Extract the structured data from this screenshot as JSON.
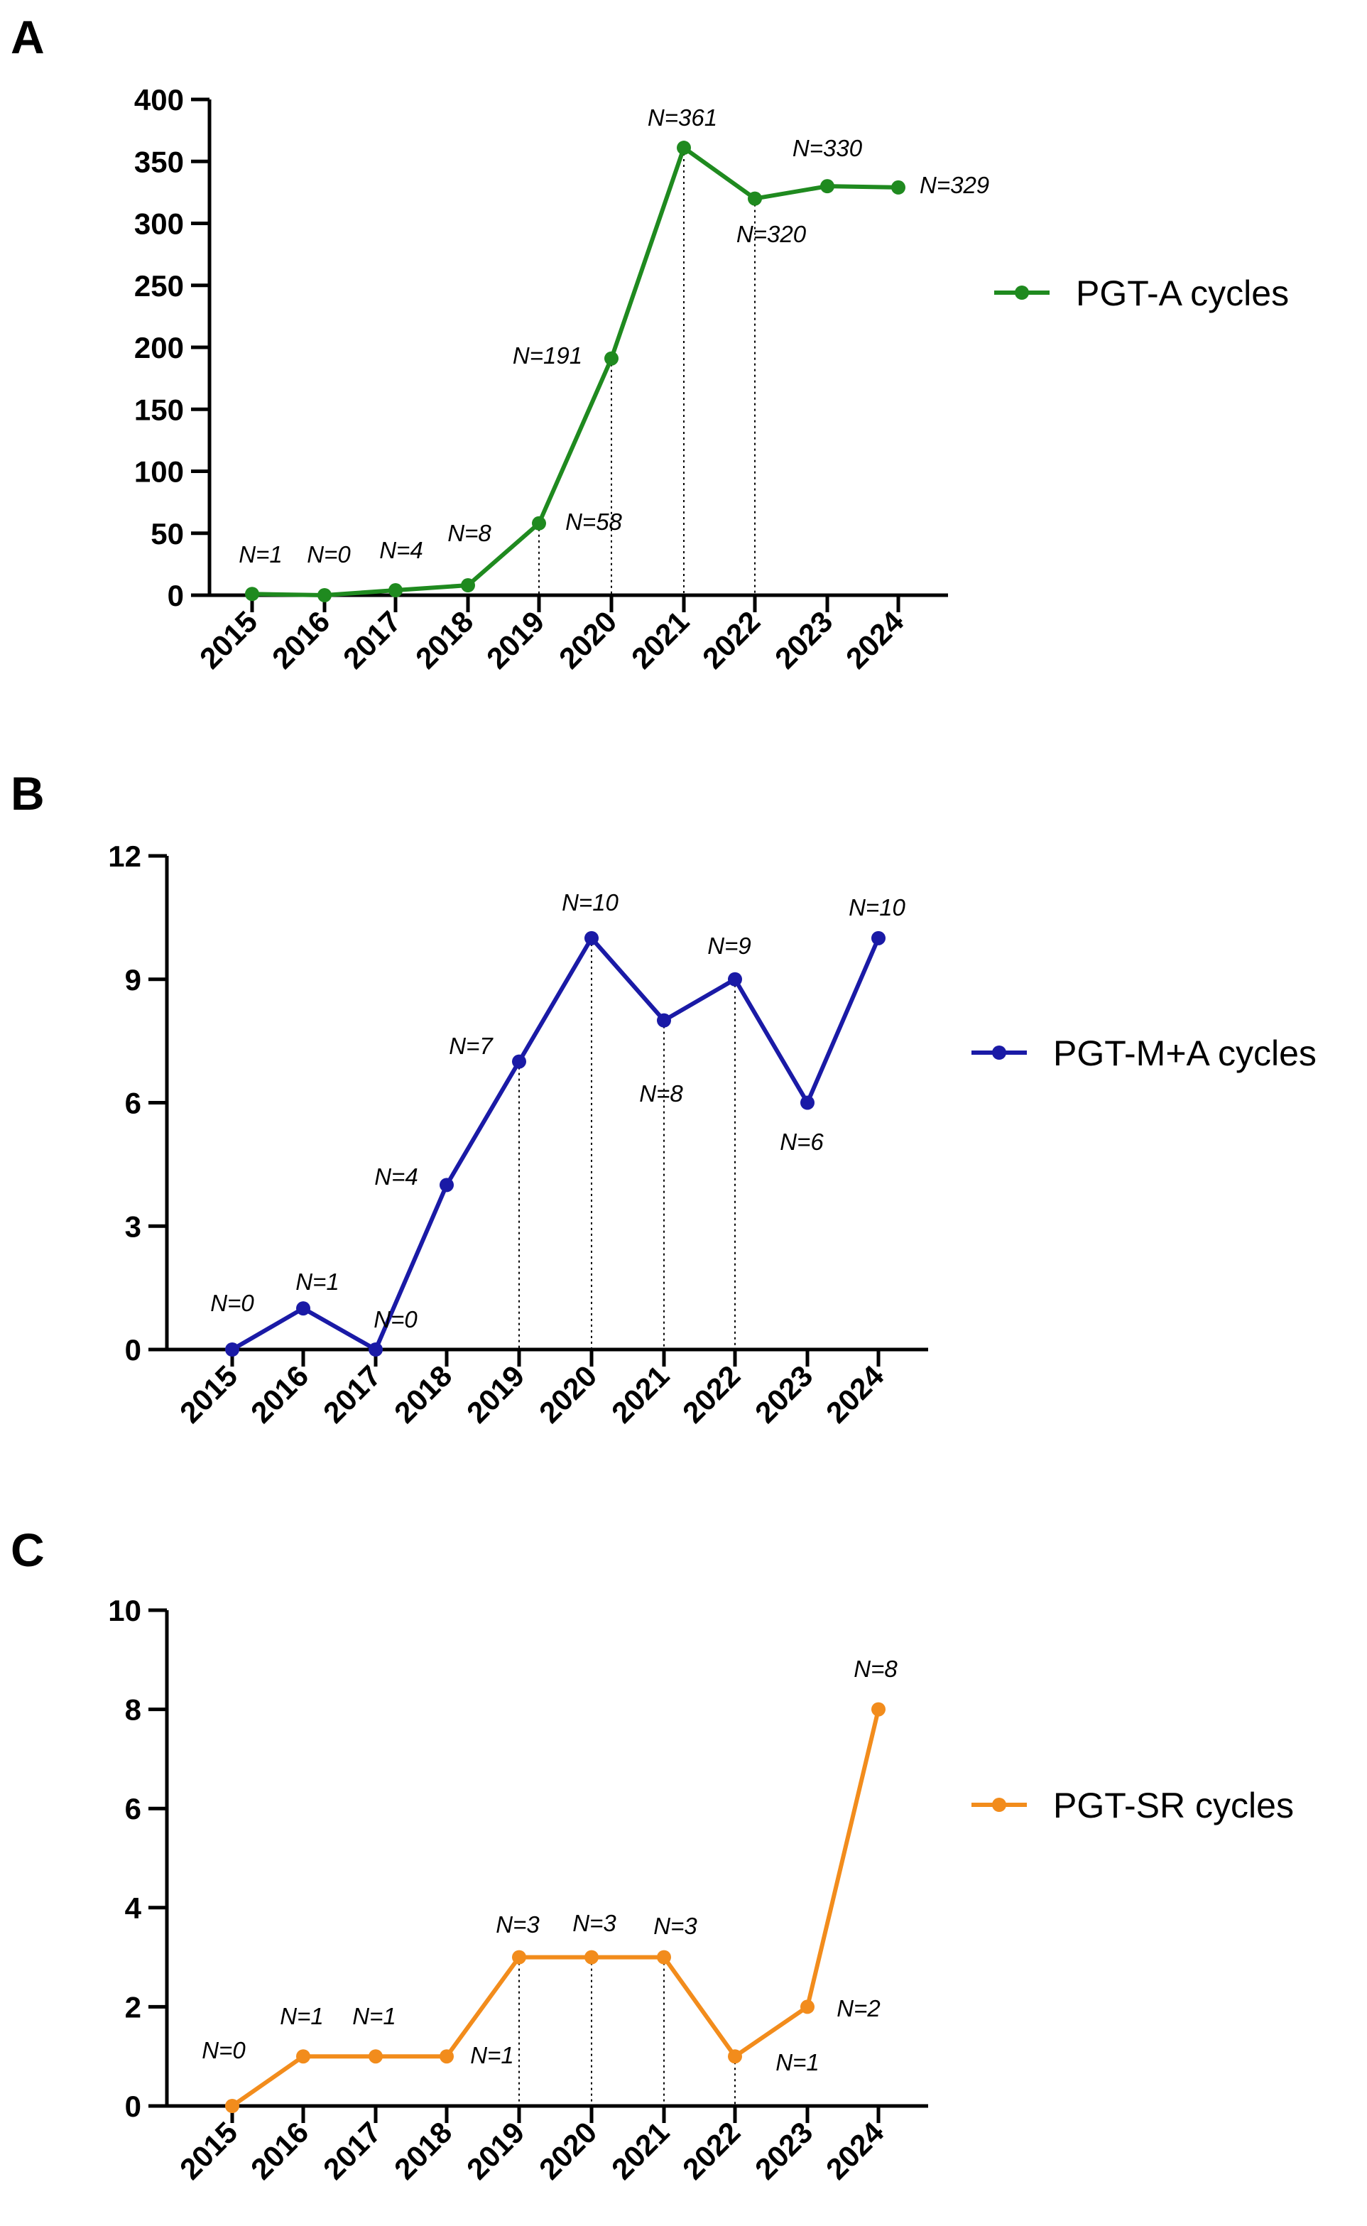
{
  "chart_data": [
    {
      "panel": "A",
      "type": "line",
      "color": "#1f8a1f",
      "categories": [
        "2015",
        "2016",
        "2017",
        "2018",
        "2019",
        "2020",
        "2021",
        "2022",
        "2023",
        "2024"
      ],
      "series": [
        {
          "name": "PGT-A cycles",
          "values": [
            1,
            0,
            4,
            8,
            58,
            191,
            361,
            320,
            330,
            329
          ]
        }
      ],
      "data_labels": [
        "N=1",
        "N=0",
        "N=4",
        "N=8",
        "N=58",
        "N=191",
        "N=361",
        "N=320",
        "N=330",
        "N=329"
      ],
      "ylim": [
        0,
        400
      ],
      "yticks": [
        "0",
        "50",
        "100",
        "150",
        "200",
        "250",
        "300",
        "350",
        "400"
      ],
      "guides": [
        "2019",
        "2020",
        "2021",
        "2022"
      ],
      "legend": "right"
    },
    {
      "panel": "B",
      "type": "line",
      "color": "#1a1aa6",
      "categories": [
        "2015",
        "2016",
        "2017",
        "2018",
        "2019",
        "2020",
        "2021",
        "2022",
        "2023",
        "2024"
      ],
      "series": [
        {
          "name": "PGT-M+A cycles",
          "values": [
            0,
            1,
            0,
            4,
            7,
            10,
            8,
            9,
            6,
            10
          ]
        }
      ],
      "data_labels": [
        "N=0",
        "N=1",
        "N=0",
        "N=4",
        "N=7",
        "N=10",
        "N=8",
        "N=9",
        "N=6",
        "N=10"
      ],
      "ylim": [
        0,
        12
      ],
      "yticks": [
        "0",
        "3",
        "6",
        "9",
        "12"
      ],
      "guides": [
        "2019",
        "2020",
        "2021",
        "2022"
      ],
      "legend": "right"
    },
    {
      "panel": "C",
      "type": "line",
      "color": "#f28c1c",
      "categories": [
        "2015",
        "2016",
        "2017",
        "2018",
        "2019",
        "2020",
        "2021",
        "2022",
        "2023",
        "2024"
      ],
      "series": [
        {
          "name": "PGT-SR cycles",
          "values": [
            0,
            1,
            1,
            1,
            3,
            3,
            3,
            1,
            2,
            8
          ]
        }
      ],
      "data_labels": [
        "N=0",
        "N=1",
        "N=1",
        "N=1",
        "N=3",
        "N=3",
        "N=3",
        "N=1",
        "N=2",
        "N=8"
      ],
      "ylim": [
        0,
        10
      ],
      "yticks": [
        "0",
        "2",
        "4",
        "6",
        "8",
        "10"
      ],
      "guides": [
        "2019",
        "2020",
        "2021",
        "2022"
      ],
      "legend": "right"
    }
  ]
}
